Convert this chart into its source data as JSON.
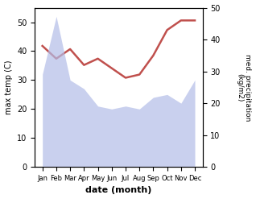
{
  "months": [
    "Jan",
    "Feb",
    "Mar",
    "Apr",
    "May",
    "Jun",
    "Jul",
    "Aug",
    "Sep",
    "Oct",
    "Nov",
    "Dec"
  ],
  "max_temp": [
    32,
    52,
    30,
    27,
    21,
    20,
    21,
    20,
    24,
    25,
    22,
    30
  ],
  "precipitation": [
    38,
    34,
    37,
    32,
    34,
    31,
    28,
    29,
    35,
    43,
    46,
    46
  ],
  "temp_color": "#c0504d",
  "precip_fill_color": "#b3bde8",
  "ylim_left": [
    0,
    55
  ],
  "ylim_right": [
    0,
    50
  ],
  "xlabel": "date (month)",
  "ylabel_left": "max temp (C)",
  "ylabel_right": "med. precipitation\n(kg/m2)",
  "left_yticks": [
    0,
    10,
    20,
    30,
    40,
    50
  ],
  "right_yticks": [
    0,
    10,
    20,
    30,
    40,
    50
  ],
  "bg_color": "#ffffff"
}
